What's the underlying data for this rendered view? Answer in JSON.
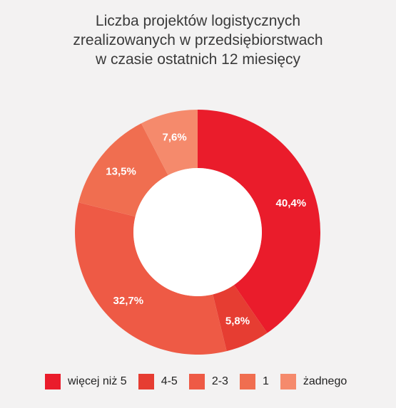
{
  "chart_data": {
    "type": "pie",
    "title_lines": [
      "Liczba projektów logistycznych",
      "zrealizowanych w przedsiębiorstwach",
      "w czasie ostatnich 12 miesięcy"
    ],
    "donut": true,
    "legend_position": "bottom",
    "slices": [
      {
        "name": "więcej niż 5",
        "value": 40.4,
        "label": "40,4%",
        "color": "#ea1c2b"
      },
      {
        "name": "4-5",
        "value": 5.8,
        "label": "5,8%",
        "color": "#e63d32"
      },
      {
        "name": "2-3",
        "value": 32.7,
        "label": "32,7%",
        "color": "#ee5a45"
      },
      {
        "name": "1",
        "value": 13.5,
        "label": "13,5%",
        "color": "#f06e50"
      },
      {
        "name": "żadnego",
        "value": 7.6,
        "label": "7,6%",
        "color": "#f58a6c"
      }
    ]
  }
}
